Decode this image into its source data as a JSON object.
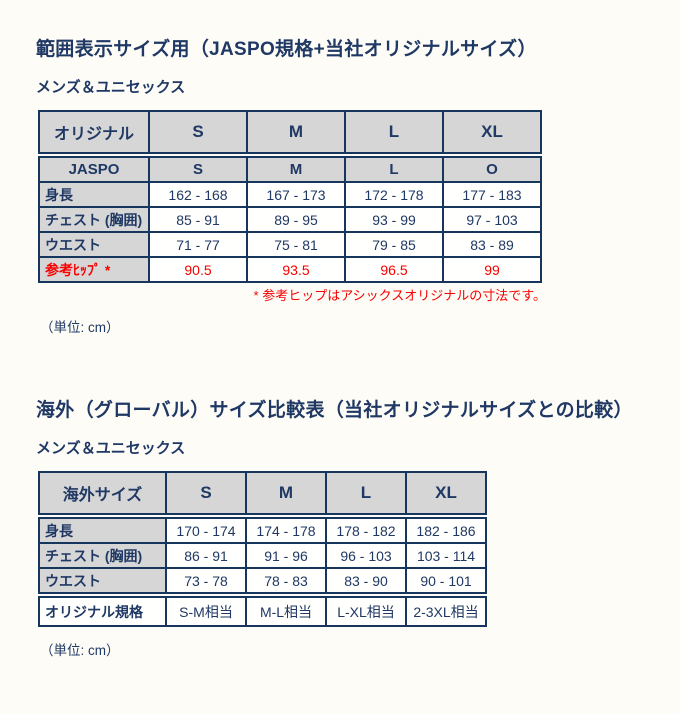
{
  "colors": {
    "navy_text": "#1f3864",
    "border_navy": "#17365d",
    "header_gray": "#d6d6d6",
    "red": "#f80000"
  },
  "s1": {
    "title": "範囲表示サイズ用（JASPO規格+当社オリジナルサイズ）",
    "subtitle": "メンズ＆ユニセックス",
    "header": {
      "label": "オリジナル",
      "sizes": [
        "S",
        "M",
        "L",
        "XL"
      ]
    },
    "rows": [
      {
        "label": "JASPO",
        "values": [
          "S",
          "M",
          "L",
          "O"
        ]
      },
      {
        "label": "身長",
        "values": [
          "162 - 168",
          "167 - 173",
          "172 - 178",
          "177 - 183"
        ]
      },
      {
        "label": "チェスト (胸囲)",
        "values": [
          "85 - 91",
          "89 - 95",
          "93 - 99",
          "97 - 103"
        ]
      },
      {
        "label": "ウエスト",
        "values": [
          "71 - 77",
          "75 - 81",
          "79 - 85",
          "83 - 89"
        ]
      },
      {
        "label": "参考ﾋｯﾌﾟ *",
        "values": [
          "90.5",
          "93.5",
          "96.5",
          "99"
        ]
      }
    ],
    "footnote": "* 参考ヒップはアシックスオリジナルの寸法です。",
    "unit": "（単位: cm）"
  },
  "s2": {
    "title": "海外（グローバル）サイズ比較表（当社オリジナルサイズとの比較）",
    "subtitle": "メンズ＆ユニセックス",
    "header": {
      "label": "海外サイズ",
      "sizes": [
        "S",
        "M",
        "L",
        "XL"
      ]
    },
    "rows": [
      {
        "label": "身長",
        "values": [
          "170 - 174",
          "174 - 178",
          "178 - 182",
          "182 - 186"
        ]
      },
      {
        "label": "チェスト (胸囲)",
        "values": [
          "86 - 91",
          "91 - 96",
          "96 - 103",
          "103 - 114"
        ]
      },
      {
        "label": "ウエスト",
        "values": [
          "73 - 78",
          "78 - 83",
          "83 - 90",
          "90 - 101"
        ]
      }
    ],
    "footer": {
      "label": "オリジナル規格",
      "values": [
        "S-M相当",
        "M-L相当",
        "L-XL相当",
        "2-3XL相当"
      ]
    },
    "unit": "（単位: cm）"
  }
}
